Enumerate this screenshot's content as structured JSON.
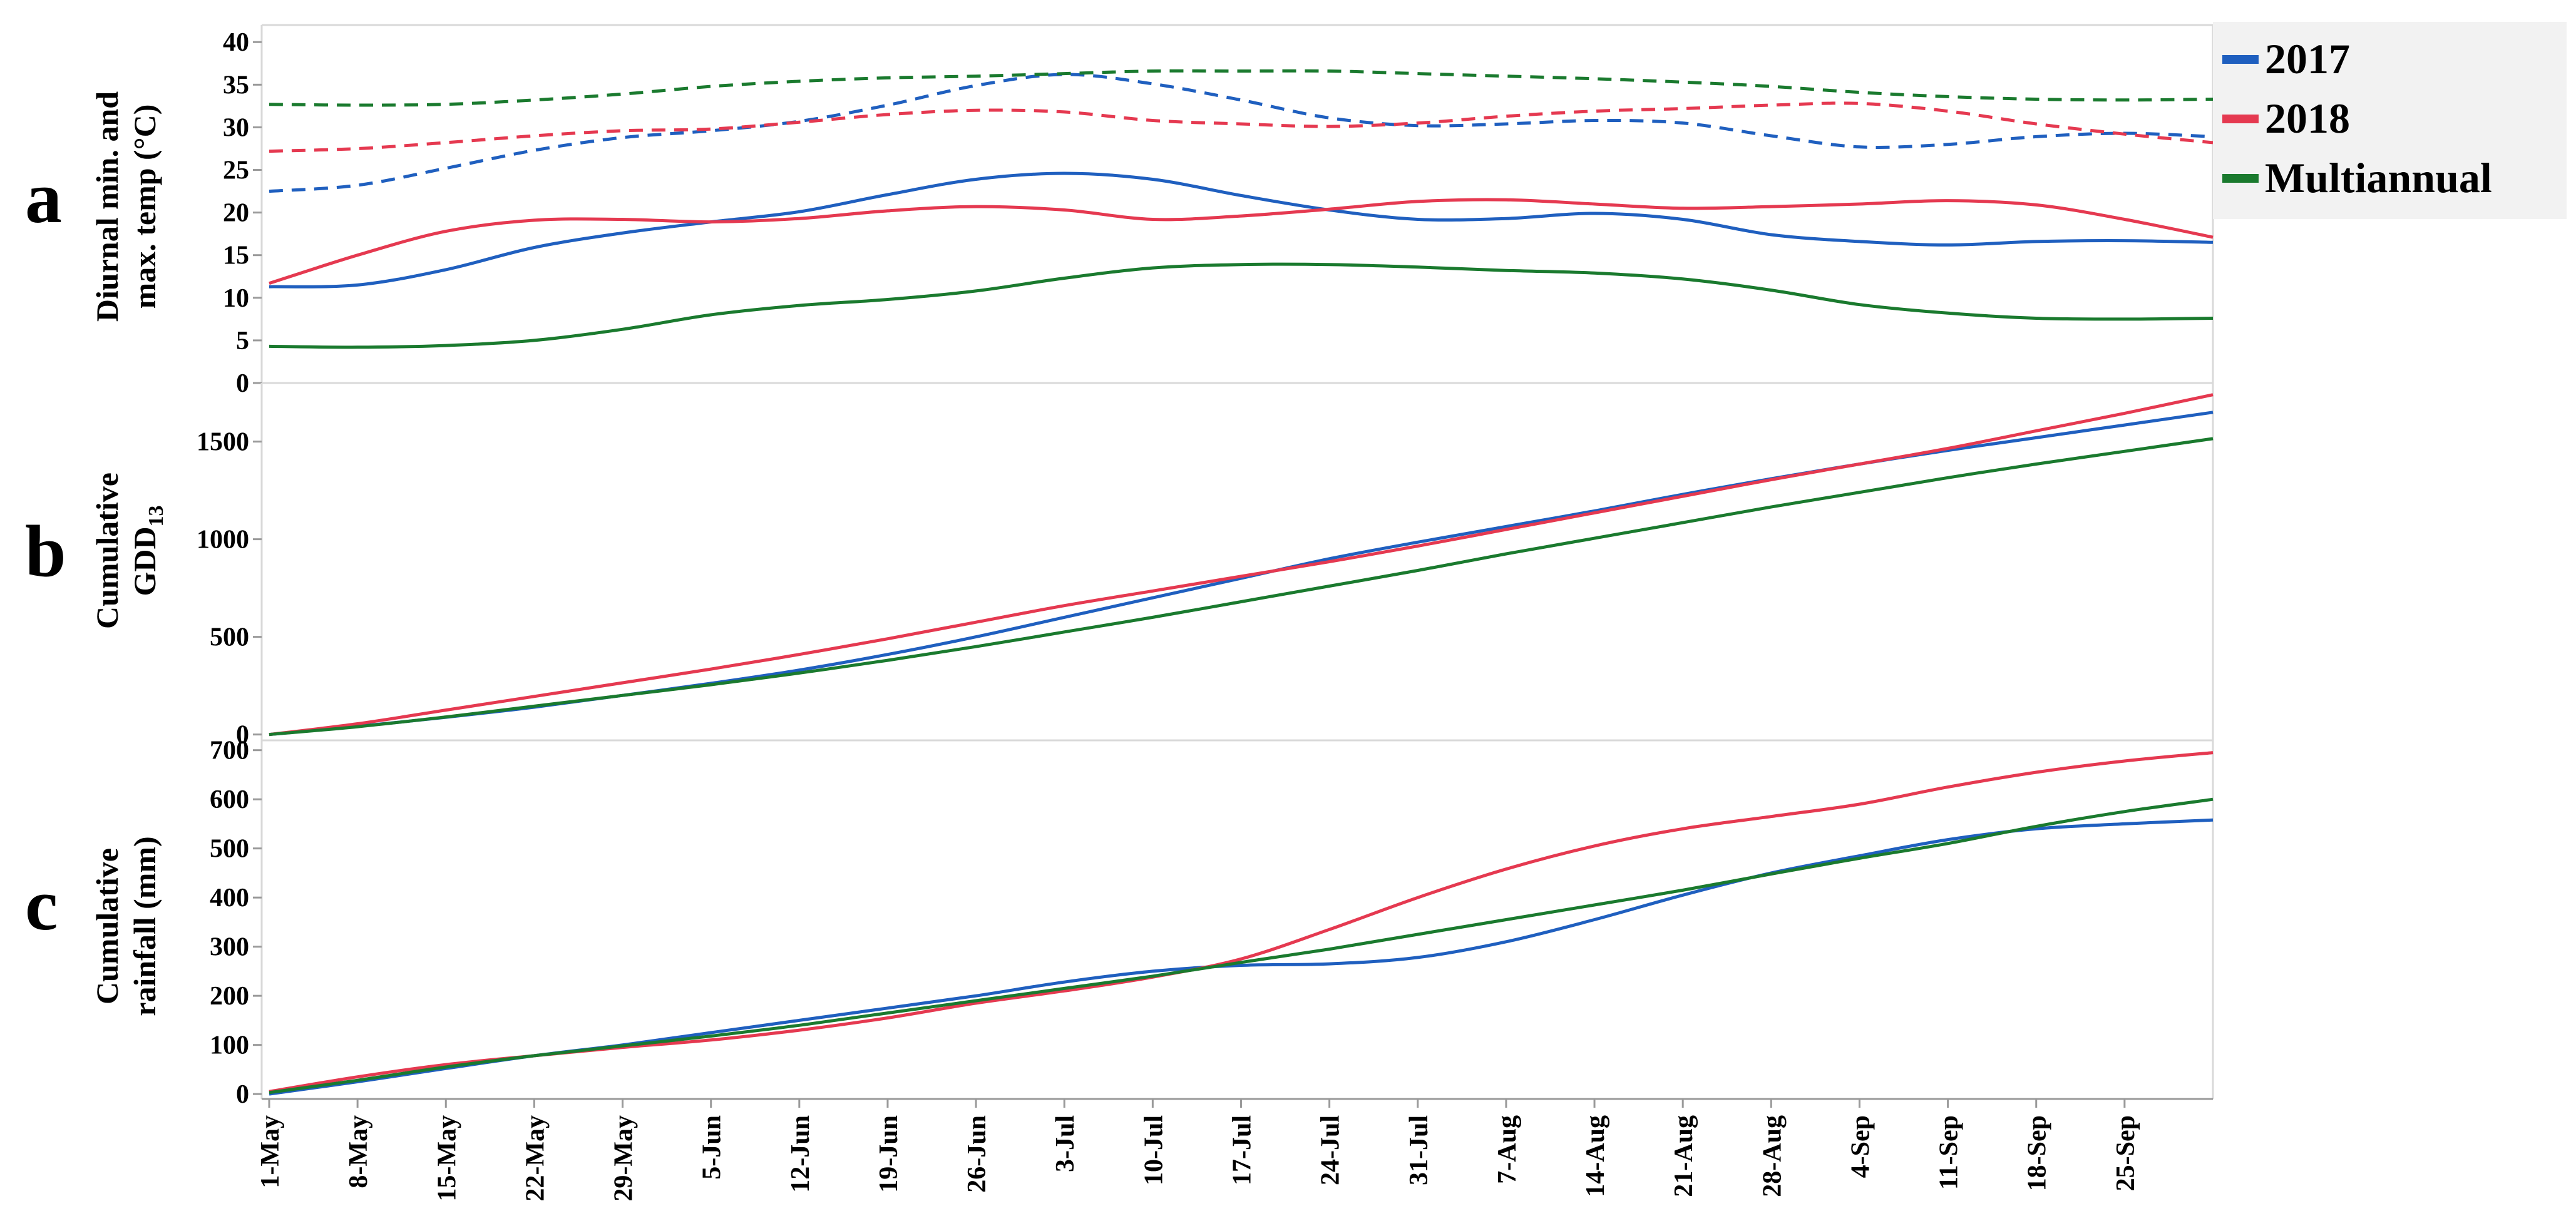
{
  "figure": {
    "x_tick_labels": [
      "1-May",
      "8-May",
      "15-May",
      "22-May",
      "29-May",
      "5-Jun",
      "12-Jun",
      "19-Jun",
      "26-Jun",
      "3-Jul",
      "10-Jul",
      "17-Jul",
      "24-Jul",
      "31-Jul",
      "7-Aug",
      "14-Aug",
      "21-Aug",
      "28-Aug",
      "4-Sep",
      "11-Sep",
      "18-Sep",
      "25-Sep"
    ],
    "legend": [
      {
        "label": "2017",
        "color": "#1f5fbf"
      },
      {
        "label": "2018",
        "color": "#e53950"
      },
      {
        "label": "Multiannual",
        "color": "#1a7a2e"
      }
    ],
    "panels": [
      {
        "letter": "a",
        "ylabel_lines": [
          "Diurnal min. and",
          "max. temp (°C)"
        ]
      },
      {
        "letter": "b",
        "ylabel_lines": [
          "Cumulative",
          "GDD"
        ],
        "ylabel_subscript": "13"
      },
      {
        "letter": "c",
        "ylabel_lines": [
          "Cumulative",
          "rainfall (mm)"
        ]
      }
    ]
  },
  "chart_data": [
    {
      "type": "line",
      "panel": "a",
      "ylabel": "Diurnal min. and max. temp (°C)",
      "xlim": [
        0,
        22
      ],
      "ylim": [
        0,
        42
      ],
      "yticks": [
        0,
        5,
        10,
        15,
        20,
        25,
        30,
        35,
        40
      ],
      "grid": false,
      "x": [
        0,
        1,
        2,
        3,
        4,
        5,
        6,
        7,
        8,
        9,
        10,
        11,
        12,
        13,
        14,
        15,
        16,
        17,
        18,
        19,
        20,
        21,
        22
      ],
      "series": [
        {
          "name": "2017",
          "kind": "max",
          "dashed": true,
          "color": "#1f5fbf",
          "values": [
            22.5,
            23.2,
            25.2,
            27.3,
            28.8,
            29.6,
            30.7,
            32.6,
            34.9,
            36.2,
            35.1,
            33.2,
            31.1,
            30.2,
            30.4,
            30.8,
            30.5,
            29.0,
            27.7,
            28.0,
            28.9,
            29.3,
            28.9
          ]
        },
        {
          "name": "2018",
          "kind": "max",
          "dashed": true,
          "color": "#e53950",
          "values": [
            27.2,
            27.5,
            28.2,
            29.0,
            29.6,
            29.8,
            30.6,
            31.5,
            32.0,
            31.8,
            30.8,
            30.4,
            30.1,
            30.5,
            31.3,
            31.9,
            32.2,
            32.6,
            32.8,
            31.9,
            30.4,
            29.2,
            28.2
          ]
        },
        {
          "name": "Multiannual",
          "kind": "max",
          "dashed": true,
          "color": "#1a7a2e",
          "values": [
            32.7,
            32.6,
            32.7,
            33.2,
            33.9,
            34.8,
            35.4,
            35.8,
            36.0,
            36.3,
            36.6,
            36.6,
            36.6,
            36.3,
            36.0,
            35.7,
            35.3,
            34.8,
            34.1,
            33.6,
            33.3,
            33.2,
            33.3
          ]
        },
        {
          "name": "2017",
          "kind": "min",
          "dashed": false,
          "color": "#1f5fbf",
          "values": [
            11.3,
            11.5,
            13.3,
            15.9,
            17.6,
            18.9,
            20.1,
            22.1,
            23.9,
            24.6,
            23.9,
            22.0,
            20.3,
            19.2,
            19.3,
            19.9,
            19.2,
            17.4,
            16.6,
            16.2,
            16.6,
            16.7,
            16.5
          ]
        },
        {
          "name": "2018",
          "kind": "min",
          "dashed": false,
          "color": "#e53950",
          "values": [
            11.7,
            15.0,
            17.8,
            19.1,
            19.2,
            18.9,
            19.3,
            20.2,
            20.7,
            20.3,
            19.2,
            19.6,
            20.4,
            21.3,
            21.5,
            21.0,
            20.5,
            20.7,
            21.0,
            21.4,
            20.9,
            19.2,
            17.1
          ]
        },
        {
          "name": "Multiannual",
          "kind": "min",
          "dashed": false,
          "color": "#1a7a2e",
          "values": [
            4.3,
            4.2,
            4.4,
            5.0,
            6.3,
            8.0,
            9.1,
            9.8,
            10.8,
            12.3,
            13.5,
            13.9,
            13.9,
            13.6,
            13.2,
            12.9,
            12.2,
            10.9,
            9.2,
            8.2,
            7.6,
            7.5,
            7.6
          ]
        }
      ]
    },
    {
      "type": "line",
      "panel": "b",
      "ylabel": "Cumulative GDD13",
      "xlim": [
        0,
        22
      ],
      "ylim": [
        -30,
        1800
      ],
      "yticks": [
        0,
        500,
        1000,
        1500
      ],
      "grid": false,
      "x": [
        0,
        1,
        2,
        3,
        4,
        5,
        6,
        7,
        8,
        9,
        10,
        11,
        12,
        13,
        14,
        15,
        16,
        17,
        18,
        19,
        20,
        21,
        22
      ],
      "series": [
        {
          "name": "2017",
          "color": "#1f5fbf",
          "values": [
            0,
            42,
            88,
            140,
            200,
            262,
            330,
            410,
            500,
            600,
            700,
            800,
            900,
            985,
            1065,
            1145,
            1230,
            1310,
            1385,
            1455,
            1520,
            1585,
            1650
          ]
        },
        {
          "name": "2018",
          "color": "#e53950",
          "values": [
            0,
            55,
            125,
            195,
            265,
            335,
            410,
            490,
            575,
            660,
            735,
            810,
            885,
            965,
            1050,
            1135,
            1220,
            1305,
            1385,
            1465,
            1555,
            1645,
            1740
          ]
        },
        {
          "name": "Multiannual",
          "color": "#1a7a2e",
          "values": [
            0,
            40,
            90,
            145,
            200,
            255,
            315,
            380,
            450,
            525,
            600,
            680,
            760,
            840,
            925,
            1005,
            1085,
            1165,
            1240,
            1315,
            1385,
            1450,
            1515
          ]
        }
      ]
    },
    {
      "type": "line",
      "panel": "c",
      "ylabel": "Cumulative rainfall (mm)",
      "xlim": [
        0,
        22
      ],
      "ylim": [
        -10,
        720
      ],
      "yticks": [
        0,
        100,
        200,
        300,
        400,
        500,
        600,
        700
      ],
      "grid": false,
      "x": [
        0,
        1,
        2,
        3,
        4,
        5,
        6,
        7,
        8,
        9,
        10,
        11,
        12,
        13,
        14,
        15,
        16,
        17,
        18,
        19,
        20,
        21,
        22
      ],
      "series": [
        {
          "name": "2017",
          "color": "#1f5fbf",
          "values": [
            0,
            25,
            52,
            78,
            100,
            125,
            150,
            175,
            200,
            228,
            250,
            262,
            265,
            278,
            310,
            355,
            405,
            450,
            485,
            518,
            540,
            550,
            558
          ]
        },
        {
          "name": "2018",
          "color": "#e53950",
          "values": [
            5,
            35,
            60,
            78,
            95,
            110,
            130,
            155,
            185,
            210,
            238,
            275,
            335,
            400,
            458,
            505,
            540,
            565,
            590,
            625,
            655,
            678,
            695
          ]
        },
        {
          "name": "Multiannual",
          "color": "#1a7a2e",
          "values": [
            3,
            28,
            55,
            78,
            98,
            118,
            140,
            165,
            190,
            215,
            240,
            268,
            295,
            325,
            355,
            385,
            415,
            448,
            480,
            510,
            545,
            575,
            600
          ]
        }
      ]
    }
  ]
}
